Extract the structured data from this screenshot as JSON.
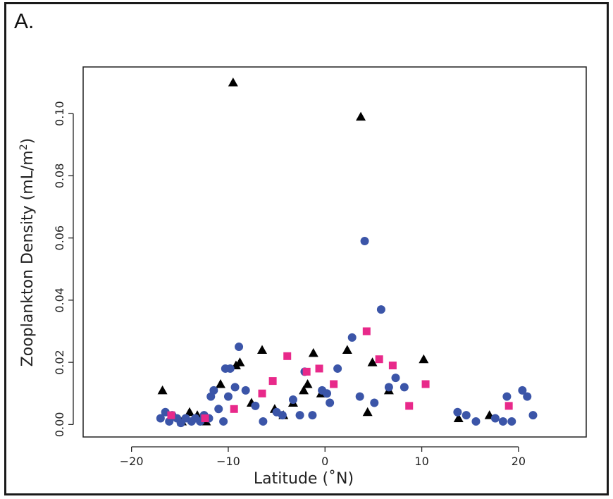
{
  "panel_label": "A.",
  "chart_data": {
    "type": "scatter",
    "xlabel": "Latitude (˚N)",
    "ylabel": "Zooplankton Density (mL/m²)",
    "xlim": [
      -25,
      27
    ],
    "ylim": [
      -0.004,
      0.115
    ],
    "xticks": [
      -20,
      -10,
      0,
      10,
      20
    ],
    "xtick_labels": [
      "−20",
      "−10",
      "0",
      "10",
      "20"
    ],
    "yticks": [
      0.0,
      0.02,
      0.04,
      0.06,
      0.08,
      0.1
    ],
    "ytick_labels": [
      "0.00",
      "0.02",
      "0.04",
      "0.06",
      "0.08",
      "0.10"
    ],
    "grid": false,
    "legend": "none",
    "series": [
      {
        "marker": "triangle",
        "color": "#000000",
        "points": [
          [
            -16.8,
            0.011
          ],
          [
            -14.8,
            0.001
          ],
          [
            -14.0,
            0.004
          ],
          [
            -13.2,
            0.003
          ],
          [
            -12.3,
            0.001
          ],
          [
            -10.8,
            0.013
          ],
          [
            -9.5,
            0.11
          ],
          [
            -9.2,
            0.019
          ],
          [
            -8.8,
            0.02
          ],
          [
            -7.6,
            0.007
          ],
          [
            -6.5,
            0.024
          ],
          [
            -5.2,
            0.005
          ],
          [
            -4.3,
            0.003
          ],
          [
            -3.3,
            0.007
          ],
          [
            -2.2,
            0.011
          ],
          [
            -1.8,
            0.013
          ],
          [
            -1.2,
            0.023
          ],
          [
            -0.4,
            0.01
          ],
          [
            2.3,
            0.024
          ],
          [
            3.7,
            0.099
          ],
          [
            4.4,
            0.004
          ],
          [
            4.9,
            0.02
          ],
          [
            6.6,
            0.011
          ],
          [
            10.2,
            0.021
          ],
          [
            13.8,
            0.002
          ],
          [
            17.0,
            0.003
          ]
        ]
      },
      {
        "marker": "circle",
        "color": "#3b55a8",
        "points": [
          [
            -17.0,
            0.002
          ],
          [
            -16.5,
            0.004
          ],
          [
            -16.1,
            0.001
          ],
          [
            -15.8,
            0.003
          ],
          [
            -15.3,
            0.002
          ],
          [
            -14.9,
            0.0005
          ],
          [
            -14.4,
            0.002
          ],
          [
            -13.8,
            0.001
          ],
          [
            -13.4,
            0.002
          ],
          [
            -12.9,
            0.001
          ],
          [
            -12.5,
            0.003
          ],
          [
            -12.0,
            0.002
          ],
          [
            -11.8,
            0.009
          ],
          [
            -11.5,
            0.011
          ],
          [
            -11.0,
            0.005
          ],
          [
            -10.5,
            0.001
          ],
          [
            -10.3,
            0.018
          ],
          [
            -10.0,
            0.009
          ],
          [
            -9.8,
            0.018
          ],
          [
            -9.3,
            0.012
          ],
          [
            -8.9,
            0.025
          ],
          [
            -8.2,
            0.011
          ],
          [
            -7.2,
            0.006
          ],
          [
            -6.4,
            0.001
          ],
          [
            -5.0,
            0.004
          ],
          [
            -4.4,
            0.003
          ],
          [
            -3.3,
            0.008
          ],
          [
            -2.6,
            0.003
          ],
          [
            -2.1,
            0.017
          ],
          [
            -1.3,
            0.003
          ],
          [
            -0.3,
            0.011
          ],
          [
            0.2,
            0.01
          ],
          [
            0.5,
            0.007
          ],
          [
            1.3,
            0.018
          ],
          [
            2.8,
            0.028
          ],
          [
            3.6,
            0.009
          ],
          [
            4.1,
            0.059
          ],
          [
            5.1,
            0.007
          ],
          [
            5.8,
            0.037
          ],
          [
            6.6,
            0.012
          ],
          [
            7.3,
            0.015
          ],
          [
            8.2,
            0.012
          ],
          [
            13.7,
            0.004
          ],
          [
            14.6,
            0.003
          ],
          [
            15.6,
            0.001
          ],
          [
            17.6,
            0.002
          ],
          [
            18.4,
            0.001
          ],
          [
            18.8,
            0.009
          ],
          [
            19.3,
            0.001
          ],
          [
            20.4,
            0.011
          ],
          [
            20.9,
            0.009
          ],
          [
            21.5,
            0.003
          ]
        ]
      },
      {
        "marker": "square",
        "color": "#e8298a",
        "points": [
          [
            -15.9,
            0.003
          ],
          [
            -12.4,
            0.002
          ],
          [
            -9.4,
            0.005
          ],
          [
            -6.5,
            0.01
          ],
          [
            -5.4,
            0.014
          ],
          [
            -3.9,
            0.022
          ],
          [
            -1.9,
            0.017
          ],
          [
            -0.6,
            0.018
          ],
          [
            0.9,
            0.013
          ],
          [
            4.3,
            0.03
          ],
          [
            5.6,
            0.021
          ],
          [
            7.0,
            0.019
          ],
          [
            8.7,
            0.006
          ],
          [
            10.4,
            0.013
          ],
          [
            19.0,
            0.006
          ]
        ]
      }
    ]
  }
}
